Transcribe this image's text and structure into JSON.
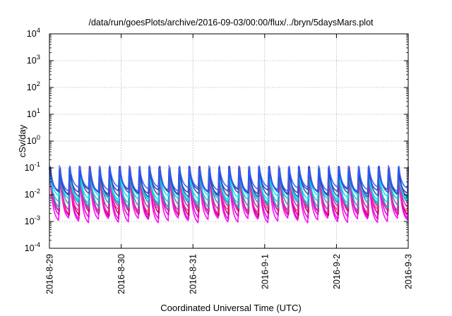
{
  "chart_data": {
    "type": "line",
    "title": "/data/run/goesPlots/archive/2016-09-03/00:00/flux/../bryn/5daysMars.plot",
    "xlabel": "Coordinated Universal Time (UTC)",
    "ylabel": "cSv/day",
    "y_scale": "log",
    "ylim": [
      0.0001,
      10000
    ],
    "xlim": [
      "2016-08-29",
      "2016-09-03"
    ],
    "x_ticks": [
      "2016-8-29",
      "2016-8-30",
      "2016-8-31",
      "2016-9-1",
      "2016-9-2",
      "2016-9-3"
    ],
    "y_ticks": [
      {
        "base": "10",
        "exp": "-4"
      },
      {
        "base": "10",
        "exp": "-3"
      },
      {
        "base": "10",
        "exp": "-2"
      },
      {
        "base": "10",
        "exp": "-1"
      },
      {
        "base": "10",
        "exp": "0"
      },
      {
        "base": "10",
        "exp": "1"
      },
      {
        "base": "10",
        "exp": "2"
      },
      {
        "base": "10",
        "exp": "3"
      },
      {
        "base": "10",
        "exp": "4"
      }
    ],
    "grid": true,
    "pattern": {
      "cycles": 36,
      "peak_value": 0.1,
      "trough_range": [
        0.001,
        0.02
      ]
    },
    "series": [
      {
        "color": "#ff00ff",
        "peak": 0.105,
        "trough": 0.0011
      },
      {
        "color": "#e600c8",
        "peak": 0.1,
        "trough": 0.0015
      },
      {
        "color": "#c0005a",
        "peak": 0.1,
        "trough": 0.002
      },
      {
        "color": "#ff3399",
        "peak": 0.095,
        "trough": 0.0025
      },
      {
        "color": "#a040c0",
        "peak": 0.1,
        "trough": 0.003
      },
      {
        "color": "#3a8fb7",
        "peak": 0.1,
        "trough": 0.004
      },
      {
        "color": "#20c0d0",
        "peak": 0.095,
        "trough": 0.006
      },
      {
        "color": "#00e5ff",
        "peak": 0.09,
        "trough": 0.008
      },
      {
        "color": "#4a4aa0",
        "peak": 0.1,
        "trough": 0.01
      },
      {
        "color": "#2e3fbf",
        "peak": 0.1,
        "trough": 0.013
      },
      {
        "color": "#2f5fff",
        "peak": 0.105,
        "trough": 0.016
      }
    ]
  }
}
